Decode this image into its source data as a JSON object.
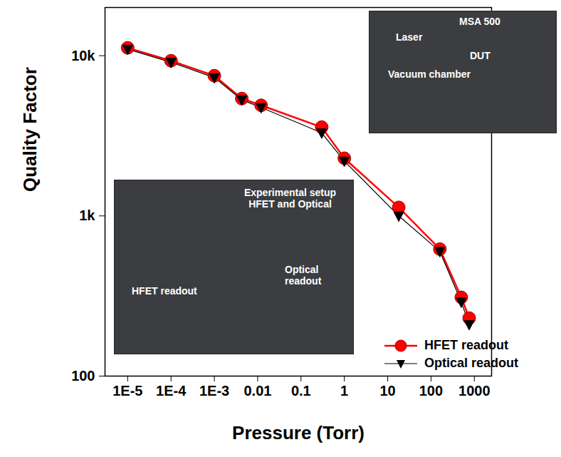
{
  "chart_data": {
    "type": "line",
    "x_label": "Pressure (Torr)",
    "y_label": "Quality Factor",
    "log": true,
    "xlim": [
      3e-06,
      2500
    ],
    "ylim": [
      100,
      20000
    ],
    "xticks": [
      {
        "value": 1e-05,
        "label": "1E-5"
      },
      {
        "value": 0.0001,
        "label": "1E-4"
      },
      {
        "value": 0.001,
        "label": "1E-3"
      },
      0.01,
      0.1,
      1,
      10,
      100,
      1000
    ],
    "yticks": [
      100,
      {
        "value": 1000,
        "label": "1k"
      },
      {
        "value": 10000,
        "label": "10k"
      }
    ],
    "legend": "bottom-right",
    "x": [
      1e-05,
      0.0001,
      0.001,
      0.0043,
      0.012,
      0.3,
      1,
      18,
      160,
      500,
      760
    ],
    "series": [
      {
        "name": "HFET readout",
        "color": "#ff0000",
        "marker": "circle",
        "values": [
          11200,
          9300,
          7500,
          5400,
          4900,
          3580,
          2290,
          1130,
          620,
          310,
          230
        ]
      },
      {
        "name": "Optical readout",
        "color": "#000000",
        "marker": "triangle-down",
        "values": [
          11000,
          9100,
          7300,
          5300,
          4750,
          3300,
          2200,
          1000,
          600,
          290,
          210
        ]
      }
    ],
    "annotations": [
      "MSA 500",
      "Laser",
      "DUT",
      "Vacuum chamber",
      "Experimental setup HFET and Optical",
      "HFET readout",
      "Optical readout"
    ]
  }
}
